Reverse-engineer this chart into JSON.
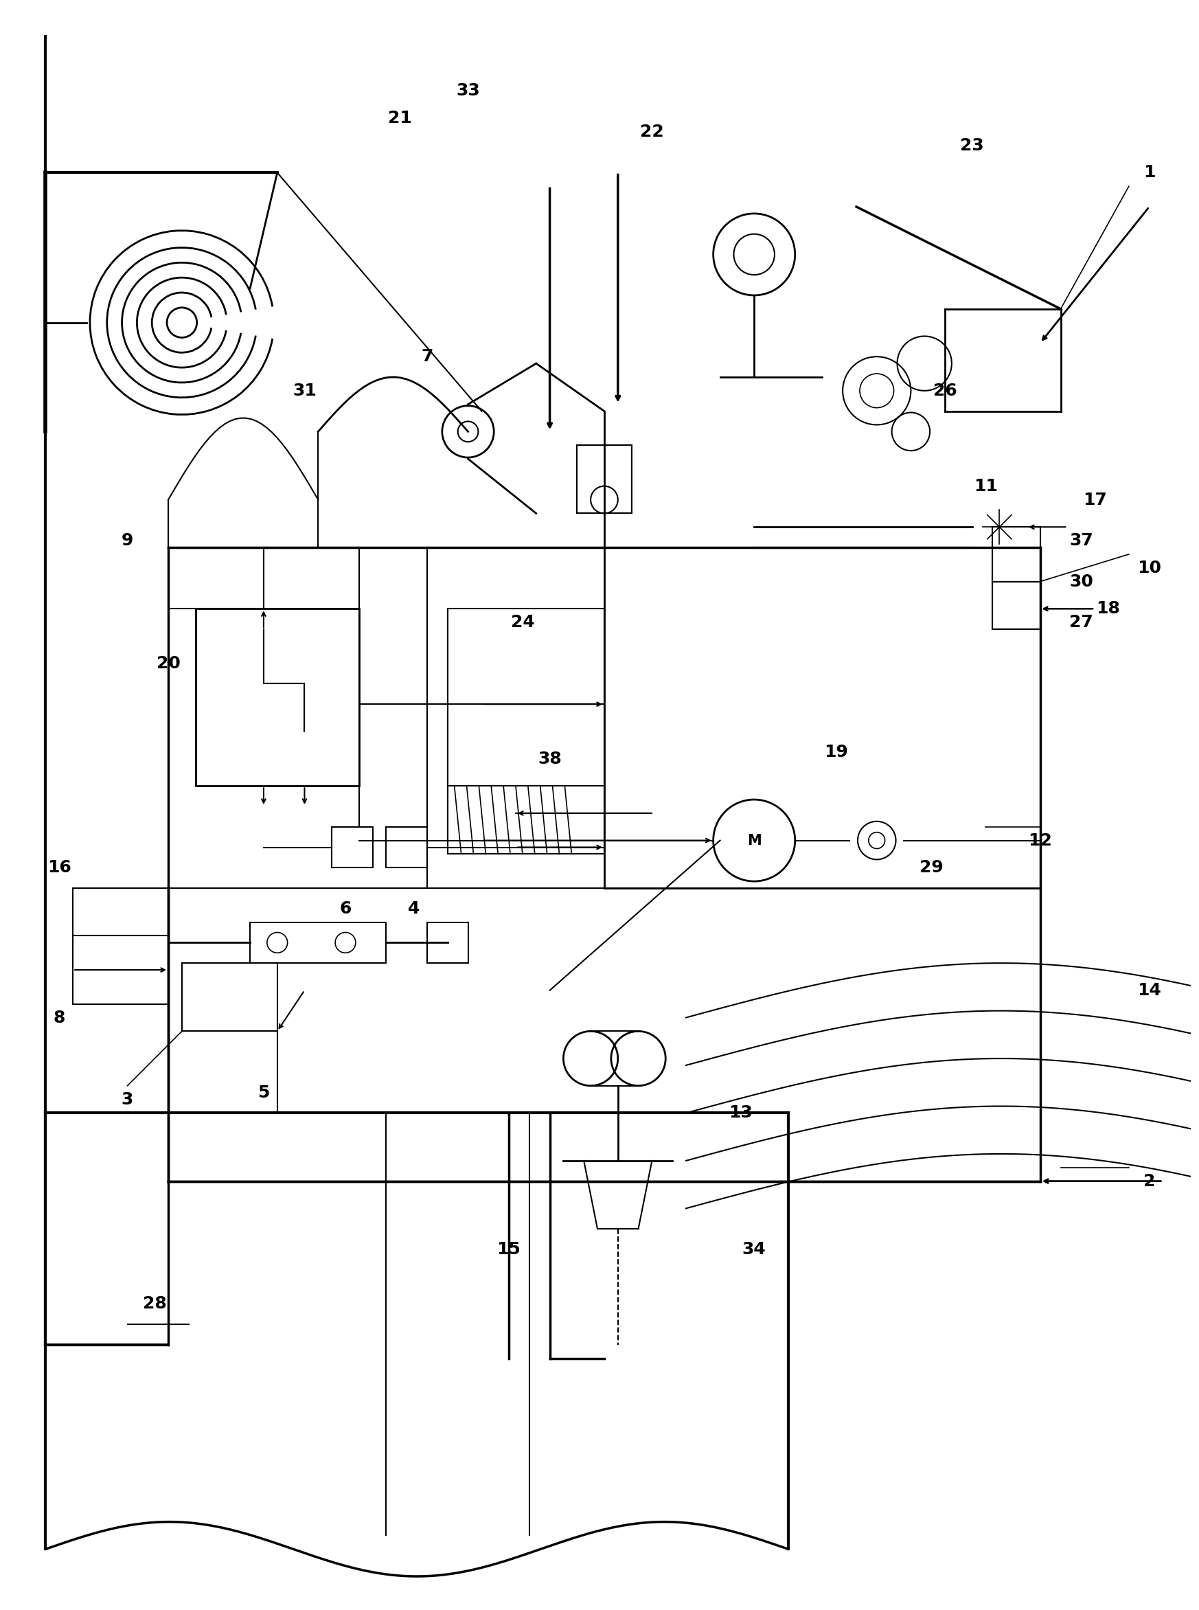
{
  "background_color": "#ffffff",
  "line_color": "#000000",
  "label_fontsize": 18,
  "label_fontweight": "bold",
  "fig_width": 17.46,
  "fig_height": 23.44
}
